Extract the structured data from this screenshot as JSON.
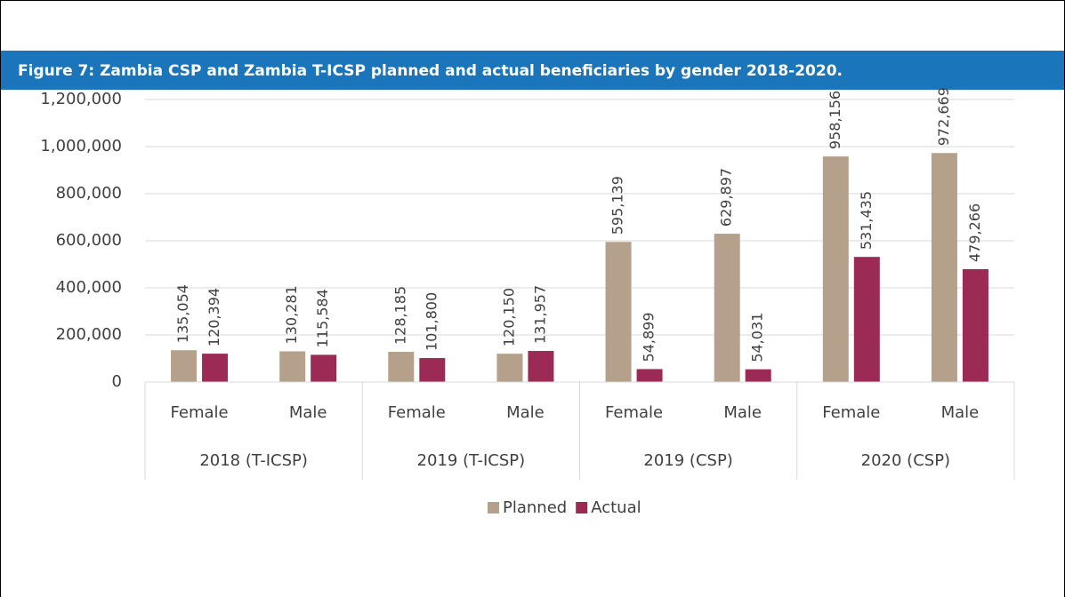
{
  "chart_data": {
    "type": "bar",
    "title": "Figure 7: Zambia CSP and Zambia T-ICSP planned and actual beneficiaries by gender 2018-2020.",
    "categories": [
      "Female",
      "Male",
      "Female",
      "Male",
      "Female",
      "Male",
      "Female",
      "Male"
    ],
    "groups": [
      "2018 (T-ICSP)",
      "2019 (T-ICSP)",
      "2019 (CSP)",
      "2020 (CSP)"
    ],
    "series": [
      {
        "name": "Planned",
        "color": "#b5a08b",
        "values": [
          135054,
          130281,
          128185,
          120150,
          595139,
          629897,
          958156,
          972669
        ],
        "value_labels": [
          "135,054",
          "130,281",
          "128,185",
          "120,150",
          "595,139",
          "629,897",
          "958,156",
          "972,669"
        ]
      },
      {
        "name": "Actual",
        "color": "#9b2a55",
        "values": [
          120394,
          115584,
          101800,
          131957,
          54899,
          54031,
          531435,
          479266
        ],
        "value_labels": [
          "120,394",
          "115,584",
          "101,800",
          "131,957",
          "54,899",
          "54,031",
          "531,435",
          "479,266"
        ]
      }
    ],
    "ylim": [
      0,
      1200000
    ],
    "yticks": [
      0,
      {
        "value": 200000,
        "label": "200,000"
      },
      {
        "value": 400000,
        "label": "400,000"
      },
      {
        "value": 600000,
        "label": "600,000"
      },
      {
        "value": 800000,
        "label": "800,000"
      },
      {
        "value": 1000000,
        "label": "1,000,000"
      },
      {
        "value": 1200000,
        "label": "1,200,000"
      }
    ],
    "grid": true,
    "legend": "bottom"
  }
}
